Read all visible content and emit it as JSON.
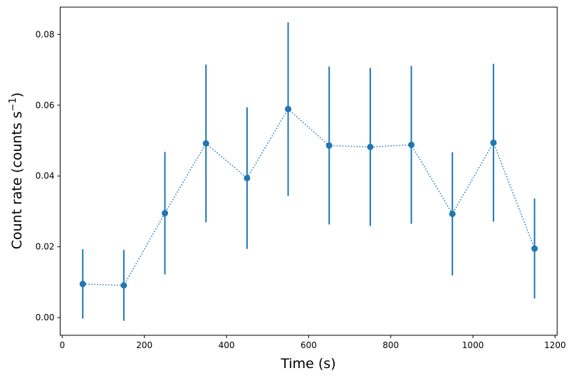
{
  "chart_data": {
    "type": "scatter",
    "xlabel": "Time (s)",
    "ylabel": "Count rate (counts s",
    "ylabel_sup": "−1",
    "ylabel_close": ")",
    "xlim": [
      -5,
      1205
    ],
    "ylim": [
      -0.005,
      0.0877
    ],
    "grid": false,
    "x_ticks": [
      0,
      200,
      400,
      600,
      800,
      1000,
      1200
    ],
    "x_tick_labels": [
      "0",
      "200",
      "400",
      "600",
      "800",
      "1000",
      "1200"
    ],
    "y_ticks": [
      0,
      0.02,
      0.04,
      0.06,
      0.08
    ],
    "y_tick_labels": [
      "0.00",
      "0.02",
      "0.04",
      "0.06",
      "0.08"
    ],
    "color": "#1f77b4",
    "line_style": "dotted",
    "series": [
      {
        "x": [
          50,
          150,
          250,
          350,
          450,
          550,
          650,
          750,
          850,
          950,
          1050,
          1150
        ],
        "y": [
          0.0095,
          0.0091,
          0.0295,
          0.0492,
          0.0394,
          0.0589,
          0.0486,
          0.0482,
          0.0488,
          0.0293,
          0.0494,
          0.0195
        ],
        "yerr": [
          0.0098,
          0.01,
          0.0173,
          0.0223,
          0.02,
          0.0245,
          0.0223,
          0.0223,
          0.0223,
          0.0174,
          0.0223,
          0.0141
        ]
      }
    ]
  }
}
